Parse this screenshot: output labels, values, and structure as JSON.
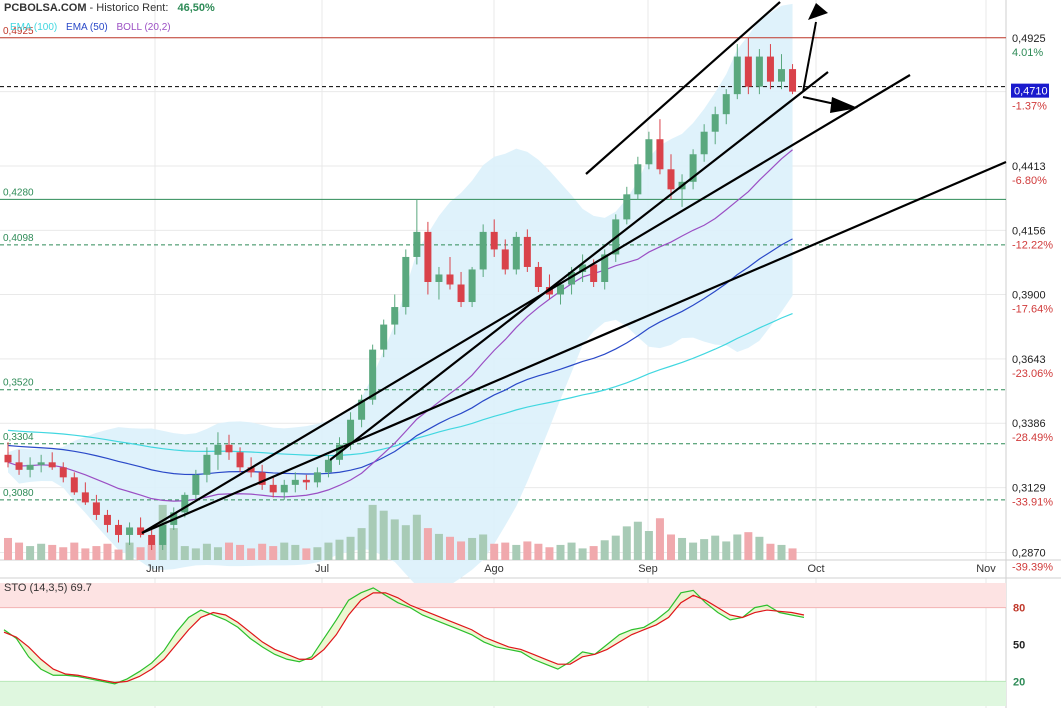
{
  "header": {
    "site": "PCBOLSA.COM",
    "separator": " - Historico",
    "rent_label": "Rent:",
    "rent_value": "46,50%"
  },
  "legend": [
    {
      "label": "EMA (100)",
      "color": "#41d7e0"
    },
    {
      "label": "EMA (50)",
      "color": "#2a49c8"
    },
    {
      "label": "BOLL (20,2)",
      "color": "#9b4fc4"
    }
  ],
  "colors": {
    "up": "#5aa87e",
    "down": "#d9424a",
    "vol_up": "#a8cbb6",
    "vol_down": "#f0a9ad",
    "boll_band": "#dcf1fb",
    "grid": "#e9e9e9",
    "sto_k": "#2cbf2c",
    "sto_d": "#e0141a",
    "last_price_bg": "#1a1acd"
  },
  "chart_data": {
    "type": "candlestick",
    "price_axis": {
      "ticks": [
        {
          "price": "0,4925",
          "pct": "4.01%"
        },
        {
          "price": "0,4710",
          "pct": "-1.37%",
          "highlight": true
        },
        {
          "price": "0,4413",
          "pct": "-6.80%"
        },
        {
          "price": "0,4156",
          "pct": "-12.22%"
        },
        {
          "price": "0,3900",
          "pct": "-17.64%"
        },
        {
          "price": "0,3643",
          "pct": "-23.06%"
        },
        {
          "price": "0,3386",
          "pct": "-28.49%"
        },
        {
          "price": "0,3129",
          "pct": "-33.91%"
        },
        {
          "price": "0,2870",
          "pct": "-39.39%"
        }
      ]
    },
    "x_axis": [
      "Jun",
      "Jul",
      "Ago",
      "Sep",
      "Oct",
      "Nov"
    ],
    "levels": [
      {
        "label": "0,4925",
        "value": 0.4925,
        "color": "#c0392b",
        "style": "solid"
      },
      {
        "label": "",
        "value": 0.473,
        "color": "#000000",
        "style": "dashed"
      },
      {
        "label": "0,4280",
        "value": 0.428,
        "color": "#2e8b57",
        "style": "solid"
      },
      {
        "label": "0,4098",
        "value": 0.4098,
        "color": "#2e8b57",
        "style": "dashed"
      },
      {
        "label": "0,3520",
        "value": 0.352,
        "color": "#2e8b57",
        "style": "dashed"
      },
      {
        "label": "0,3304",
        "value": 0.3304,
        "color": "#2e8b57",
        "style": "dashed"
      },
      {
        "label": "0,3080",
        "value": 0.308,
        "color": "#2e8b57",
        "style": "dashed"
      }
    ],
    "candles": [
      [
        0.326,
        0.331,
        0.321,
        0.323
      ],
      [
        0.323,
        0.328,
        0.318,
        0.32
      ],
      [
        0.32,
        0.325,
        0.317,
        0.322
      ],
      [
        0.322,
        0.326,
        0.319,
        0.323
      ],
      [
        0.323,
        0.327,
        0.32,
        0.321
      ],
      [
        0.321,
        0.323,
        0.315,
        0.317
      ],
      [
        0.317,
        0.319,
        0.31,
        0.311
      ],
      [
        0.311,
        0.315,
        0.306,
        0.307
      ],
      [
        0.307,
        0.31,
        0.3,
        0.302
      ],
      [
        0.302,
        0.304,
        0.295,
        0.298
      ],
      [
        0.298,
        0.3,
        0.291,
        0.294
      ],
      [
        0.294,
        0.299,
        0.29,
        0.297
      ],
      [
        0.297,
        0.301,
        0.293,
        0.294
      ],
      [
        0.294,
        0.296,
        0.288,
        0.29
      ],
      [
        0.29,
        0.299,
        0.288,
        0.298
      ],
      [
        0.298,
        0.305,
        0.296,
        0.303
      ],
      [
        0.303,
        0.311,
        0.301,
        0.31
      ],
      [
        0.31,
        0.32,
        0.308,
        0.318
      ],
      [
        0.318,
        0.329,
        0.315,
        0.326
      ],
      [
        0.326,
        0.335,
        0.32,
        0.33
      ],
      [
        0.33,
        0.334,
        0.324,
        0.327
      ],
      [
        0.327,
        0.329,
        0.319,
        0.321
      ],
      [
        0.321,
        0.325,
        0.317,
        0.319
      ],
      [
        0.319,
        0.322,
        0.312,
        0.314
      ],
      [
        0.314,
        0.317,
        0.309,
        0.311
      ],
      [
        0.311,
        0.316,
        0.308,
        0.314
      ],
      [
        0.314,
        0.319,
        0.311,
        0.316
      ],
      [
        0.316,
        0.318,
        0.312,
        0.315
      ],
      [
        0.315,
        0.321,
        0.313,
        0.319
      ],
      [
        0.319,
        0.326,
        0.317,
        0.324
      ],
      [
        0.324,
        0.333,
        0.322,
        0.33
      ],
      [
        0.33,
        0.343,
        0.328,
        0.34
      ],
      [
        0.34,
        0.35,
        0.337,
        0.348
      ],
      [
        0.348,
        0.37,
        0.346,
        0.368
      ],
      [
        0.368,
        0.38,
        0.365,
        0.378
      ],
      [
        0.378,
        0.39,
        0.374,
        0.385
      ],
      [
        0.385,
        0.408,
        0.382,
        0.405
      ],
      [
        0.405,
        0.428,
        0.402,
        0.415
      ],
      [
        0.415,
        0.419,
        0.39,
        0.395
      ],
      [
        0.395,
        0.401,
        0.388,
        0.398
      ],
      [
        0.398,
        0.405,
        0.392,
        0.394
      ],
      [
        0.394,
        0.399,
        0.385,
        0.387
      ],
      [
        0.387,
        0.401,
        0.385,
        0.4
      ],
      [
        0.4,
        0.418,
        0.397,
        0.415
      ],
      [
        0.415,
        0.42,
        0.405,
        0.408
      ],
      [
        0.408,
        0.412,
        0.398,
        0.4
      ],
      [
        0.4,
        0.415,
        0.398,
        0.413
      ],
      [
        0.413,
        0.416,
        0.399,
        0.401
      ],
      [
        0.401,
        0.403,
        0.391,
        0.393
      ],
      [
        0.393,
        0.398,
        0.388,
        0.39
      ],
      [
        0.39,
        0.395,
        0.386,
        0.394
      ],
      [
        0.394,
        0.401,
        0.39,
        0.399
      ],
      [
        0.399,
        0.406,
        0.395,
        0.402
      ],
      [
        0.402,
        0.404,
        0.393,
        0.395
      ],
      [
        0.395,
        0.408,
        0.392,
        0.406
      ],
      [
        0.406,
        0.422,
        0.403,
        0.42
      ],
      [
        0.42,
        0.433,
        0.418,
        0.43
      ],
      [
        0.43,
        0.445,
        0.428,
        0.442
      ],
      [
        0.442,
        0.455,
        0.44,
        0.452
      ],
      [
        0.452,
        0.46,
        0.438,
        0.44
      ],
      [
        0.44,
        0.446,
        0.428,
        0.432
      ],
      [
        0.432,
        0.438,
        0.425,
        0.435
      ],
      [
        0.435,
        0.448,
        0.432,
        0.446
      ],
      [
        0.446,
        0.458,
        0.443,
        0.455
      ],
      [
        0.455,
        0.465,
        0.45,
        0.462
      ],
      [
        0.462,
        0.472,
        0.458,
        0.47
      ],
      [
        0.47,
        0.49,
        0.468,
        0.485
      ],
      [
        0.485,
        0.4925,
        0.47,
        0.473
      ],
      [
        0.473,
        0.488,
        0.47,
        0.485
      ],
      [
        0.485,
        0.49,
        0.472,
        0.475
      ],
      [
        0.475,
        0.486,
        0.472,
        0.48
      ],
      [
        0.48,
        0.482,
        0.47,
        0.471
      ]
    ],
    "volume_mode": "relative",
    "volume": [
      0.38,
      0.3,
      0.24,
      0.28,
      0.26,
      0.22,
      0.3,
      0.2,
      0.24,
      0.28,
      0.18,
      0.3,
      0.22,
      0.26,
      0.95,
      0.55,
      0.24,
      0.2,
      0.28,
      0.22,
      0.3,
      0.26,
      0.2,
      0.28,
      0.24,
      0.3,
      0.26,
      0.2,
      0.22,
      0.3,
      0.35,
      0.4,
      0.55,
      0.95,
      0.85,
      0.7,
      0.6,
      0.78,
      0.55,
      0.45,
      0.4,
      0.32,
      0.38,
      0.44,
      0.28,
      0.3,
      0.26,
      0.32,
      0.28,
      0.22,
      0.26,
      0.3,
      0.2,
      0.24,
      0.34,
      0.42,
      0.58,
      0.66,
      0.5,
      0.72,
      0.44,
      0.38,
      0.3,
      0.36,
      0.42,
      0.32,
      0.44,
      0.48,
      0.4,
      0.28,
      0.26,
      0.2
    ],
    "oscillator": {
      "name": "STO (14,3,5)",
      "value": "69.7",
      "levels": [
        "80",
        "50",
        "20"
      ],
      "k": [
        62,
        55,
        40,
        30,
        25,
        25,
        24,
        22,
        20,
        18,
        22,
        28,
        35,
        45,
        60,
        72,
        78,
        74,
        70,
        64,
        55,
        48,
        42,
        38,
        36,
        40,
        55,
        70,
        86,
        92,
        96,
        90,
        84,
        80,
        74,
        70,
        66,
        62,
        58,
        52,
        48,
        46,
        44,
        38,
        34,
        30,
        36,
        44,
        42,
        50,
        58,
        62,
        64,
        70,
        78,
        92,
        94,
        84,
        76,
        70,
        72,
        80,
        82,
        76,
        74,
        72
      ],
      "d": [
        60,
        56,
        48,
        38,
        30,
        26,
        25,
        23,
        21,
        19,
        20,
        24,
        30,
        38,
        50,
        62,
        72,
        76,
        74,
        68,
        60,
        52,
        46,
        42,
        38,
        38,
        46,
        58,
        74,
        86,
        92,
        92,
        88,
        82,
        78,
        74,
        70,
        66,
        62,
        56,
        52,
        48,
        46,
        42,
        38,
        34,
        34,
        40,
        42,
        46,
        52,
        58,
        62,
        66,
        72,
        84,
        90,
        86,
        80,
        74,
        72,
        76,
        78,
        77,
        76,
        74
      ]
    }
  }
}
